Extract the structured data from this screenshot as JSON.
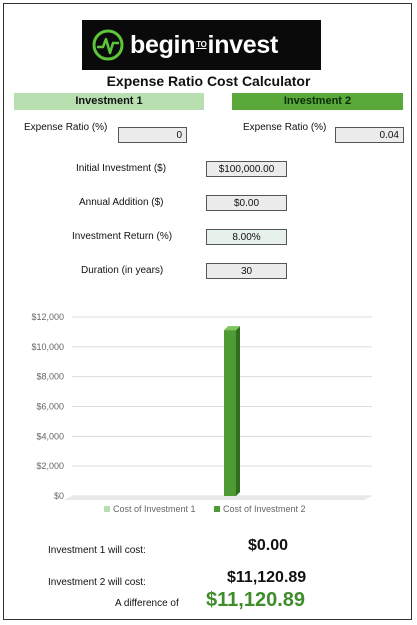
{
  "logo": {
    "text_begin": "begin",
    "text_small": "TO",
    "text_invest": "invest"
  },
  "title": "Expense Ratio Cost Calculator",
  "investment1": {
    "header": "Investment 1",
    "expense_ratio_label": "Expense Ratio (%)",
    "expense_ratio_value": "0"
  },
  "investment2": {
    "header": "Investment 2",
    "expense_ratio_label": "Expense Ratio (%)",
    "expense_ratio_value": "0.04"
  },
  "inputs": {
    "initial_label": "Initial Investment ($)",
    "initial_value": "$100,000.00",
    "annual_label": "Annual Addition ($)",
    "annual_value": "$0.00",
    "return_label": "Investment Return (%)",
    "return_value": "8.00%",
    "duration_label": "Duration (in years)",
    "duration_value": "30"
  },
  "results": {
    "inv1_label": "Investment 1 will cost:",
    "inv1_value": "$0.00",
    "inv2_label": "Investment 2 will cost:",
    "inv2_value": "$11,120.89",
    "diff_label": "A difference of",
    "diff_value": "$11,120.89"
  },
  "colors": {
    "inv1": "#b7dfb0",
    "inv2": "#59a83a",
    "diff": "#3f8d2a"
  },
  "chart_data": {
    "type": "bar",
    "categories": [
      ""
    ],
    "series": [
      {
        "name": "Cost of Investment 1",
        "values": [
          0
        ],
        "color": "#b7dfb0"
      },
      {
        "name": "Cost of Investment 2",
        "values": [
          11120.89
        ],
        "color": "#4e9a34"
      }
    ],
    "ylim": [
      0,
      12000
    ],
    "yticks": [
      "$0",
      "$2,000",
      "$4,000",
      "$6,000",
      "$8,000",
      "$10,000",
      "$12,000"
    ],
    "grid": true,
    "legend": "bottom"
  }
}
